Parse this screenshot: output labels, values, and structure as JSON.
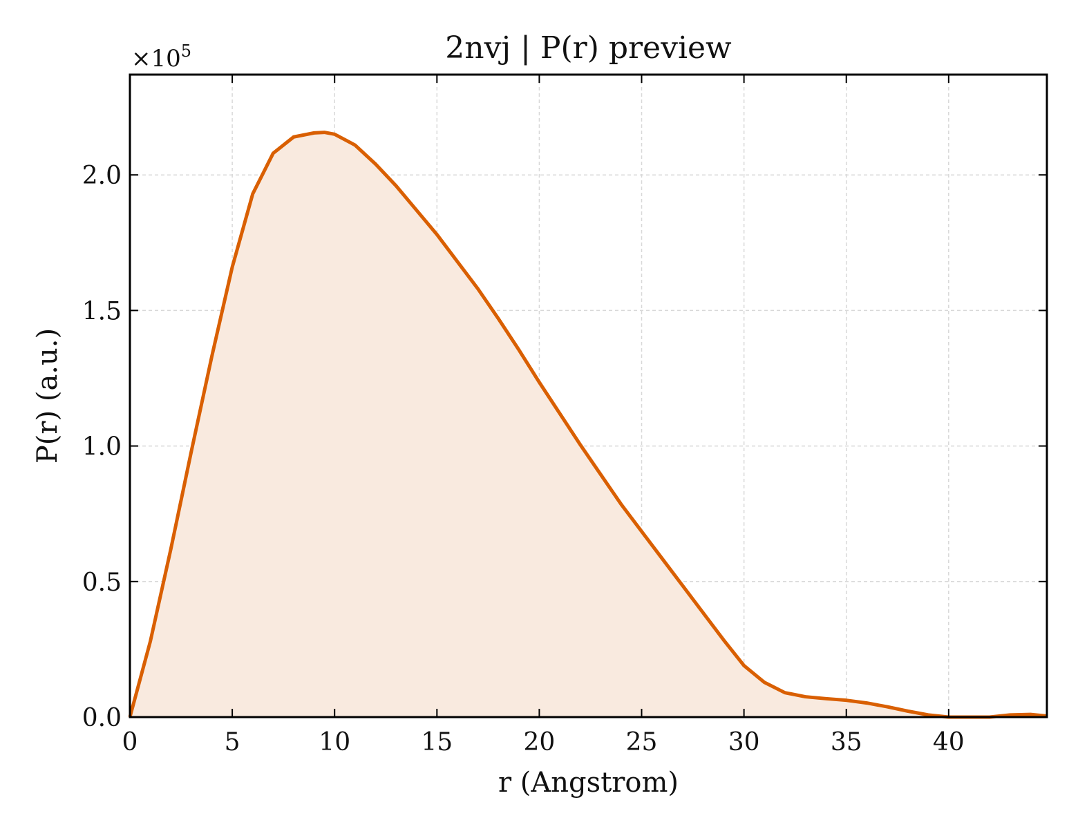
{
  "chart_data": {
    "type": "area",
    "title": "2nvj | P(r) preview",
    "xlabel": "r (Angstrom)",
    "ylabel": "P(r) (a.u.)",
    "y_offset_label": "×10",
    "y_offset_exponent": "5",
    "y_scale_factor": 100000,
    "xlim": [
      0,
      44.8
    ],
    "ylim": [
      0,
      2.37
    ],
    "x_ticks": [
      0,
      5,
      10,
      15,
      20,
      25,
      30,
      35,
      40
    ],
    "x_tick_labels": [
      "0",
      "5",
      "10",
      "15",
      "20",
      "25",
      "30",
      "35",
      "40"
    ],
    "y_ticks": [
      0,
      0.5,
      1.0,
      1.5,
      2.0
    ],
    "y_tick_labels": [
      "0.0",
      "0.5",
      "1.0",
      "1.5",
      "2.0"
    ],
    "grid": true,
    "line_color": "#d95f02",
    "fill_color": "#f9eadf",
    "series": [
      {
        "x": [
          0,
          1,
          2,
          3,
          4,
          5,
          6,
          7,
          8,
          9,
          9.5,
          10,
          11,
          12,
          13,
          14,
          15,
          16,
          17,
          18,
          19,
          20,
          21,
          22,
          23,
          24,
          25,
          26,
          27,
          28,
          29,
          30,
          31,
          32,
          33,
          34,
          35,
          36,
          37,
          38,
          39,
          40,
          41,
          42,
          43,
          44,
          44.8
        ],
        "values": [
          0,
          0.28,
          0.62,
          0.98,
          1.33,
          1.66,
          1.93,
          2.08,
          2.14,
          2.155,
          2.157,
          2.15,
          2.11,
          2.04,
          1.96,
          1.87,
          1.78,
          1.68,
          1.58,
          1.47,
          1.355,
          1.235,
          1.12,
          1.005,
          0.895,
          0.785,
          0.685,
          0.585,
          0.485,
          0.385,
          0.285,
          0.19,
          0.128,
          0.09,
          0.075,
          0.068,
          0.062,
          0.052,
          0.038,
          0.022,
          0.008,
          0.0,
          -0.002,
          0.0,
          0.008,
          0.01,
          0.004
        ]
      }
    ]
  }
}
